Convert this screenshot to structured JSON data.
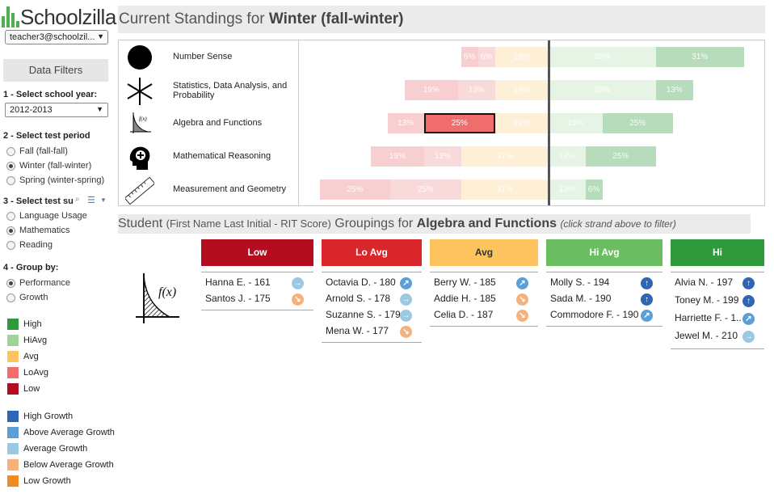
{
  "app": {
    "logo_text": "Schoolzilla",
    "user": "teacher3@schoolzil..."
  },
  "sidebar": {
    "filters_title": "Data Filters",
    "year_label": "1 - Select school year:",
    "year_value": "2012-2013",
    "period_label": "2 - Select test period",
    "periods": [
      "Fall (fall-fall)",
      "Winter (fall-winter)",
      "Spring (winter-spring)"
    ],
    "subject_label": "3 - Select test su",
    "subjects": [
      "Language Usage",
      "Mathematics",
      "Reading"
    ],
    "group_label": "4 - Group by:",
    "groups": [
      "Performance",
      "Growth"
    ],
    "legend_perf": [
      {
        "label": "High",
        "color": "#2e9a3c"
      },
      {
        "label": "HiAvg",
        "color": "#9fd39a"
      },
      {
        "label": "Avg",
        "color": "#fcc35f"
      },
      {
        "label": "LoAvg",
        "color": "#ef6d6d"
      },
      {
        "label": "Low",
        "color": "#b30d1f"
      }
    ],
    "legend_growth": [
      {
        "label": "High Growth",
        "color": "#2f66b3"
      },
      {
        "label": "Above Average Growth",
        "color": "#5b9fd6"
      },
      {
        "label": "Average Growth",
        "color": "#9cc9e1"
      },
      {
        "label": "Below Average Growth",
        "color": "#f6b27a"
      },
      {
        "label": "Low Growth",
        "color": "#f08a24"
      }
    ]
  },
  "standings": {
    "title_prefix": "Current Standings for ",
    "title_bold": "Winter (fall-winter)",
    "strands": [
      {
        "name": "Number Sense",
        "icon": "circle-icon",
        "segments": [
          "6%",
          "6%",
          "19%",
          "38%",
          "31%"
        ]
      },
      {
        "name": "Statistics, Data Analysis, and Probability",
        "icon": "asterisk-icon",
        "segments": [
          "19%",
          "13%",
          "19%",
          "38%",
          "13%"
        ]
      },
      {
        "name": "Algebra and Functions",
        "icon": "function-graph-icon",
        "segments": [
          "13%",
          "25%",
          "19%",
          "19%",
          "25%"
        ]
      },
      {
        "name": "Mathematical Reasoning",
        "icon": "head-idea-icon",
        "segments": [
          "19%",
          "13%",
          "31%",
          "13%",
          "25%"
        ]
      },
      {
        "name": "Measurement and Geometry",
        "icon": "ruler-icon",
        "segments": [
          "25%",
          "25%",
          "31%",
          "13%",
          "6%"
        ]
      }
    ]
  },
  "groupings": {
    "title_a": "Student ",
    "title_b": "(First Name Last Initial - RIT Score)",
    "title_c": " Groupings for ",
    "title_bold": "Algebra and Functions",
    "hint": "(click strand above to filter)",
    "formula": "f(x)",
    "columns": [
      {
        "label": "Low",
        "color": "#b30d1f",
        "students": [
          {
            "name": "Hanna E. - 161",
            "growth": "average"
          },
          {
            "name": "Santos J. - 175",
            "growth": "below"
          }
        ]
      },
      {
        "label": "Lo Avg",
        "color": "#d9262b",
        "students": [
          {
            "name": "Octavia D. - 180",
            "growth": "above"
          },
          {
            "name": "Arnold S. - 178",
            "growth": "average"
          },
          {
            "name": "Suzanne S. - 179",
            "growth": "average"
          },
          {
            "name": "Mena W. - 177",
            "growth": "below"
          }
        ]
      },
      {
        "label": "Avg",
        "color": "#fcc35f",
        "students": [
          {
            "name": "Berry W. - 185",
            "growth": "above"
          },
          {
            "name": "Addie H. - 185",
            "growth": "below"
          },
          {
            "name": "Celia D. - 187",
            "growth": "below"
          }
        ]
      },
      {
        "label": "Hi Avg",
        "color": "#6bbd62",
        "students": [
          {
            "name": "Molly S. - 194",
            "growth": "high"
          },
          {
            "name": "Sada M. - 190",
            "growth": "high"
          },
          {
            "name": "Commodore F. - 190",
            "growth": "above"
          }
        ]
      },
      {
        "label": "Hi",
        "color": "#2e9a3c",
        "students": [
          {
            "name": "Alvia N. - 197",
            "growth": "high"
          },
          {
            "name": "Toney M. - 199",
            "growth": "high"
          },
          {
            "name": "Harriette F. - 1..",
            "growth": "above"
          },
          {
            "name": "Jewel M. - 210",
            "growth": "average"
          }
        ]
      }
    ]
  }
}
